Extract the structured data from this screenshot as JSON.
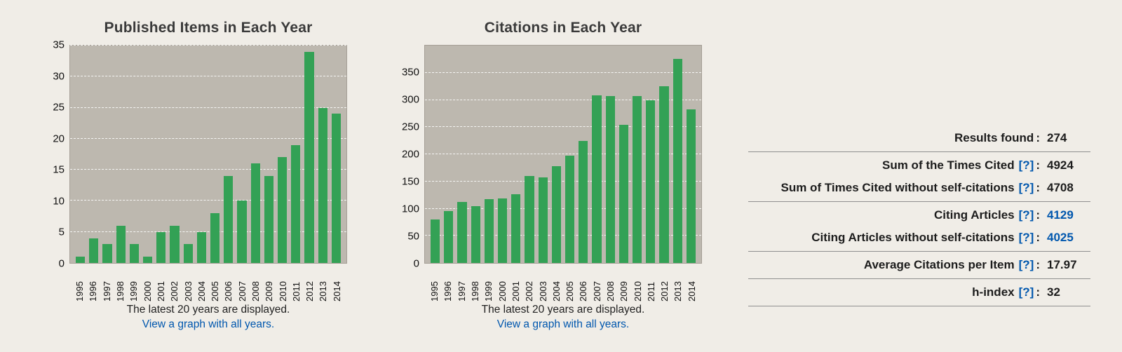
{
  "colors": {
    "page_bg": "#F0EDE7",
    "plot_bg": "#BDB8AF",
    "bar_green": "#33A155",
    "link_blue": "#0057AE"
  },
  "chart_data": [
    {
      "type": "bar",
      "title": "Published Items in Each Year",
      "categories": [
        "1995",
        "1996",
        "1997",
        "1998",
        "1999",
        "2000",
        "2001",
        "2002",
        "2003",
        "2004",
        "2005",
        "2006",
        "2007",
        "2008",
        "2009",
        "2010",
        "2011",
        "2012",
        "2013",
        "2014"
      ],
      "values": [
        1,
        4,
        3,
        6,
        3,
        1,
        5,
        6,
        3,
        5,
        8,
        14,
        10,
        16,
        14,
        17,
        19,
        34,
        25,
        24
      ],
      "xlabel": "",
      "ylabel": "",
      "ylim": [
        0,
        35
      ],
      "yticks": [
        0,
        5,
        10,
        15,
        20,
        25,
        30,
        35
      ],
      "grid": "dashed-horizontal",
      "legend": "none",
      "footer_text": "The latest 20 years are displayed.",
      "footer_link": "View a graph with all years."
    },
    {
      "type": "bar",
      "title": "Citations in Each Year",
      "categories": [
        "1995",
        "1996",
        "1997",
        "1998",
        "1999",
        "2000",
        "2001",
        "2002",
        "2003",
        "2004",
        "2005",
        "2006",
        "2007",
        "2008",
        "2009",
        "2010",
        "2011",
        "2012",
        "2013",
        "2014"
      ],
      "values": [
        80,
        95,
        112,
        105,
        118,
        119,
        126,
        160,
        157,
        178,
        198,
        225,
        308,
        307,
        254,
        307,
        299,
        325,
        375,
        283
      ],
      "xlabel": "",
      "ylabel": "",
      "ylim": [
        0,
        400
      ],
      "yticks": [
        0,
        50,
        100,
        150,
        200,
        250,
        300,
        350
      ],
      "grid": "dashed-horizontal",
      "legend": "none",
      "footer_text": "The latest 20 years are displayed.",
      "footer_link": "View a graph with all years."
    }
  ],
  "stats": {
    "help_symbol": "[?]",
    "colon": ":",
    "rows": [
      {
        "label": "Results found",
        "value": "274"
      },
      {
        "label": "Sum of the Times Cited",
        "value": "4924"
      },
      {
        "label": "Sum of Times Cited without self-citations",
        "value": "4708"
      },
      {
        "label": "Citing Articles",
        "value": "4129"
      },
      {
        "label": "Citing Articles without self-citations",
        "value": "4025"
      },
      {
        "label": "Average Citations per Item",
        "value": "17.97"
      },
      {
        "label": "h-index",
        "value": "32"
      }
    ]
  }
}
